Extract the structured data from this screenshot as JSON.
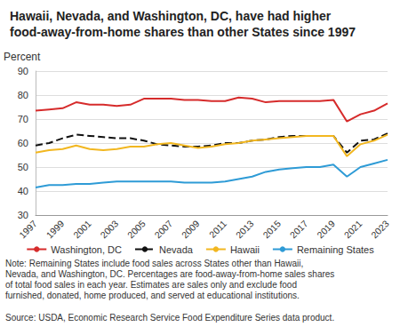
{
  "chart_data": {
    "type": "line",
    "title": "Hawaii, Nevada, and Washington, DC, have had higher food-away-from-home shares than other States since 1997",
    "y_label": "Percent",
    "categories": [
      "1997",
      null,
      "1999",
      null,
      "2001",
      null,
      "2003",
      null,
      "2005",
      null,
      "2007",
      null,
      "2009",
      null,
      "2011",
      null,
      "2013",
      null,
      "2015",
      null,
      "2017",
      null,
      "2019",
      null,
      "2021",
      null,
      "2023"
    ],
    "series": [
      {
        "name": "Washington, DC",
        "color": "#d62b2b",
        "line_style": "solid",
        "values": [
          73.5,
          74,
          74.5,
          77,
          76,
          76,
          75.5,
          76,
          78.5,
          78.5,
          78.5,
          78,
          78,
          77.5,
          77.5,
          79,
          78.5,
          77,
          77.5,
          77.5,
          77.5,
          77.5,
          78,
          69,
          72,
          73.5,
          76.5
        ]
      },
      {
        "name": "Nevada",
        "color": "#111111",
        "line_style": "dashed",
        "values": [
          59,
          60,
          62,
          63.5,
          63,
          62.5,
          62,
          62,
          61,
          59.5,
          59,
          58.5,
          58.5,
          59,
          60,
          60,
          61,
          61.5,
          62.5,
          63,
          63,
          63,
          63,
          56,
          61,
          61.5,
          64
        ]
      },
      {
        "name": "Hawaii",
        "color": "#f2b720",
        "line_style": "solid",
        "values": [
          56,
          57,
          57.5,
          59,
          57.5,
          57,
          57.5,
          58.5,
          58.5,
          59.5,
          60,
          59,
          58,
          58.5,
          59.5,
          60,
          61,
          61.5,
          62,
          62.5,
          63,
          63,
          63,
          54.5,
          59.5,
          61,
          63.5
        ]
      },
      {
        "name": "Remaining States",
        "color": "#2e9bd6",
        "line_style": "solid",
        "values": [
          41.5,
          42.5,
          42.5,
          43,
          43,
          43.5,
          44,
          44,
          44,
          44,
          44,
          43.5,
          43.5,
          43.5,
          44,
          45,
          46,
          48,
          49,
          49.5,
          50,
          50,
          51,
          46,
          50,
          51.5,
          53
        ]
      }
    ],
    "ylim": [
      30,
      90
    ],
    "yticks": [
      30,
      40,
      50,
      60,
      70,
      80,
      90
    ],
    "grid": true,
    "legend": "bottom",
    "note": "Note: Remaining States include food sales across States other than Hawaii, Nevada, and Washington, DC. Percentages are food-away-from-home sales shares of total food sales in each year. Estimates are sales only and exclude food furnished, donated, home produced, and served at educational institutions.",
    "source": "Source: USDA, Economic Research Service Food Expenditure Series data product."
  }
}
